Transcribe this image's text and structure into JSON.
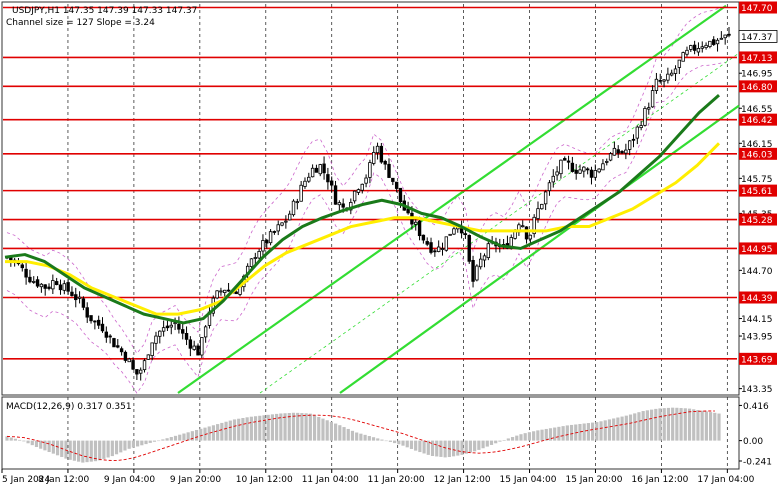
{
  "header": {
    "line1": "USDJPY,H1  147.35 147.39 147.33 147.37",
    "line2": "Channel size = 127 Slope = 3.24"
  },
  "macd_header": {
    "label": "MACD(12,26,9) 0.317 0.351"
  },
  "colors": {
    "background": "#ffffff",
    "candle": "#000000",
    "level_line": "#e00000",
    "level_box": "#e00000",
    "channel": "#33dd33",
    "ma_fast": "#1a7a1a",
    "ma_slow": "#ffee00",
    "bands": "#cc66cc",
    "macd_hist": "#c0c0c0",
    "macd_signal": "#e00000",
    "grid": "#333333"
  },
  "chart_data": [
    {
      "type": "candlestick",
      "symbol": "USDJPY",
      "timeframe": "H1",
      "ylim": [
        143.3,
        147.74
      ],
      "y_ticks": [
        "147.70",
        "147.37",
        "147.13",
        "146.95",
        "146.80",
        "146.55",
        "146.42",
        "146.15",
        "146.03",
        "145.75",
        "145.61",
        "145.35",
        "145.28",
        "144.95",
        "144.70",
        "144.39",
        "144.15",
        "143.95",
        "143.69",
        "143.35"
      ],
      "levels": [
        147.7,
        147.13,
        146.8,
        146.42,
        146.03,
        145.61,
        145.28,
        144.95,
        144.39,
        143.69
      ],
      "current_price": 147.37,
      "x_labels": [
        "5 Jan 2024",
        "8 Jan 12:00",
        "9 Jan 04:00",
        "9 Jan 20:00",
        "10 Jan 12:00",
        "11 Jan 04:00",
        "11 Jan 20:00",
        "12 Jan 12:00",
        "15 Jan 04:00",
        "15 Jan 20:00",
        "16 Jan 12:00",
        "17 Jan 04:00"
      ],
      "close_path": [
        144.85,
        144.8,
        144.7,
        144.6,
        144.55,
        144.5,
        144.6,
        144.5,
        144.45,
        144.35,
        144.2,
        144.1,
        144.05,
        143.9,
        143.8,
        143.7,
        143.5,
        143.6,
        143.9,
        144.0,
        144.05,
        144.1,
        143.95,
        143.85,
        143.75,
        144.2,
        144.4,
        144.5,
        144.45,
        144.5,
        144.7,
        144.9,
        145.0,
        145.1,
        145.2,
        145.3,
        145.5,
        145.7,
        145.85,
        145.9,
        145.75,
        145.5,
        145.4,
        145.55,
        145.7,
        145.8,
        146.15,
        145.9,
        145.75,
        145.5,
        145.3,
        145.2,
        145.05,
        144.95,
        144.95,
        145.1,
        145.25,
        145.15,
        144.55,
        144.8,
        144.95,
        145.0,
        144.95,
        145.1,
        145.3,
        145.05,
        145.35,
        145.55,
        145.75,
        145.9,
        145.9,
        145.85,
        145.85,
        145.8,
        145.9,
        146.0,
        146.05,
        146.05,
        146.2,
        146.4,
        146.6,
        146.85,
        146.85,
        146.95,
        147.1,
        147.2,
        147.25,
        147.3,
        147.3,
        147.35,
        147.37
      ],
      "ma_fast": [
        144.85,
        144.88,
        144.8,
        144.65,
        144.5,
        144.4,
        144.3,
        144.2,
        144.15,
        144.1,
        144.15,
        144.35,
        144.6,
        144.85,
        145.05,
        145.2,
        145.3,
        145.38,
        145.45,
        145.5,
        145.45,
        145.35,
        145.3,
        145.2,
        145.08,
        144.98,
        144.95,
        145.05,
        145.15,
        145.3,
        145.45,
        145.6,
        145.8,
        146.0,
        146.25,
        146.5,
        146.7
      ],
      "ma_slow": [
        144.8,
        144.8,
        144.75,
        144.65,
        144.5,
        144.4,
        144.3,
        144.2,
        144.2,
        144.25,
        144.35,
        144.55,
        144.75,
        144.9,
        145.0,
        145.1,
        145.2,
        145.25,
        145.3,
        145.3,
        145.25,
        145.2,
        145.15,
        145.15,
        145.15,
        145.15,
        145.2,
        145.2,
        145.3,
        145.4,
        145.55,
        145.7,
        145.9,
        146.15
      ],
      "channel_slope": 3.24,
      "channel_size": 127
    },
    {
      "type": "histogram",
      "name": "MACD(12,26,9)",
      "ylim": [
        -0.3,
        0.48
      ],
      "y_ticks": [
        "0.416",
        "0.00",
        "-0.241"
      ],
      "macd_value": 0.317,
      "signal_value": 0.351,
      "hist_path": [
        0.05,
        0.0,
        -0.08,
        -0.15,
        -0.22,
        -0.26,
        -0.24,
        -0.18,
        -0.1,
        -0.05,
        0.0,
        0.05,
        0.1,
        0.15,
        0.2,
        0.25,
        0.28,
        0.3,
        0.32,
        0.33,
        0.32,
        0.25,
        0.18,
        0.1,
        0.05,
        0.0,
        -0.05,
        -0.12,
        -0.18,
        -0.2,
        -0.17,
        -0.12,
        -0.05,
        0.02,
        0.08,
        0.12,
        0.15,
        0.18,
        0.2,
        0.22,
        0.26,
        0.3,
        0.35,
        0.38,
        0.39,
        0.38,
        0.35,
        0.32
      ],
      "signal_path": [
        0.05,
        0.04,
        0.0,
        -0.05,
        -0.12,
        -0.18,
        -0.22,
        -0.24,
        -0.22,
        -0.17,
        -0.11,
        -0.05,
        0.01,
        0.07,
        0.12,
        0.17,
        0.21,
        0.24,
        0.27,
        0.29,
        0.3,
        0.3,
        0.28,
        0.24,
        0.19,
        0.14,
        0.09,
        0.03,
        -0.03,
        -0.09,
        -0.13,
        -0.15,
        -0.14,
        -0.11,
        -0.07,
        -0.02,
        0.03,
        0.07,
        0.11,
        0.14,
        0.17,
        0.2,
        0.24,
        0.28,
        0.31,
        0.34,
        0.35,
        0.35
      ]
    }
  ]
}
